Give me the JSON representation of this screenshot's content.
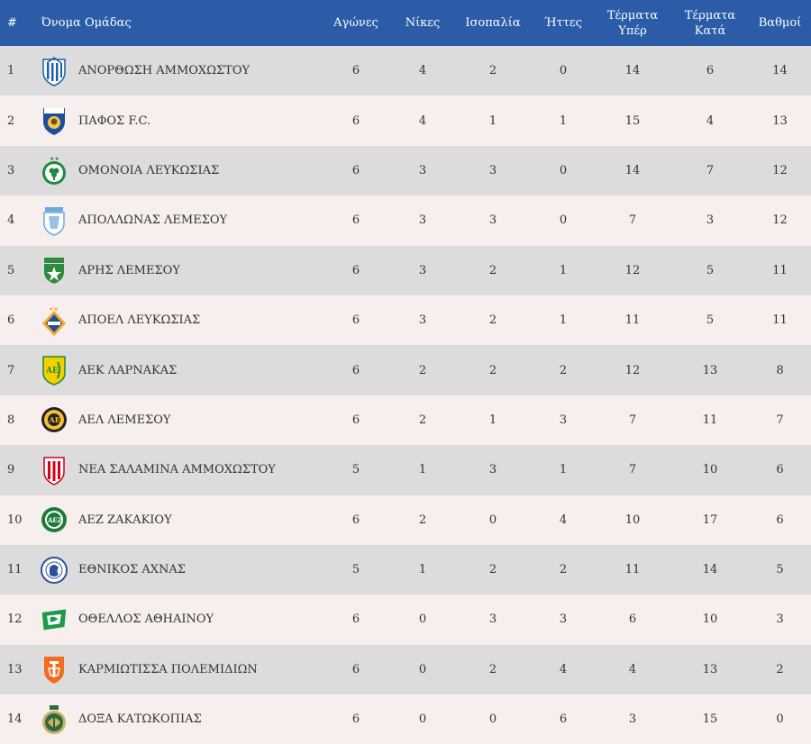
{
  "headers": {
    "rank": "#",
    "team": "Όνομα Ομάδας",
    "played": "Αγώνες",
    "wins": "Νίκες",
    "draws": "Ισοπαλία",
    "losses": "Ήττες",
    "goals_for_line1": "Τέρματα",
    "goals_for_line2": "Υπέρ",
    "goals_against_line1": "Τέρματα",
    "goals_against_line2": "Κατά",
    "points": "Βαθμοί"
  },
  "rows": [
    {
      "rank": "1",
      "team": "ΑΝΟΡΘΩΣΗ ΑΜΜΟΧΩΣΤΟΥ",
      "played": "6",
      "wins": "4",
      "draws": "2",
      "losses": "0",
      "gf": "14",
      "ga": "6",
      "pts": "14",
      "logo": "anorthosis-logo",
      "logo_colors": [
        "#1f5fa8",
        "#ffffff"
      ]
    },
    {
      "rank": "2",
      "team": "ΠΑΦΟΣ F.C.",
      "played": "6",
      "wins": "4",
      "draws": "1",
      "losses": "1",
      "gf": "15",
      "ga": "4",
      "pts": "13",
      "logo": "pafos-logo",
      "logo_colors": [
        "#1d4f9c",
        "#f2c94c"
      ]
    },
    {
      "rank": "3",
      "team": "ΟΜΟΝΟΙΑ ΛΕΥΚΩΣΙΑΣ",
      "played": "6",
      "wins": "3",
      "draws": "3",
      "losses": "0",
      "gf": "14",
      "ga": "7",
      "pts": "12",
      "logo": "omonoia-logo",
      "logo_colors": [
        "#1e8a3c",
        "#ffffff"
      ]
    },
    {
      "rank": "4",
      "team": "ΑΠΟΛΛΩΝΑΣ ΛΕΜΕΣΟΥ",
      "played": "6",
      "wins": "3",
      "draws": "3",
      "losses": "0",
      "gf": "7",
      "ga": "3",
      "pts": "12",
      "logo": "apollon-logo",
      "logo_colors": [
        "#6fa8dc",
        "#ffffff"
      ]
    },
    {
      "rank": "5",
      "team": "ΑΡΗΣ ΛΕΜΕΣΟΥ",
      "played": "6",
      "wins": "3",
      "draws": "2",
      "losses": "1",
      "gf": "12",
      "ga": "5",
      "pts": "11",
      "logo": "aris-logo",
      "logo_colors": [
        "#2e8b3e",
        "#ffffff"
      ]
    },
    {
      "rank": "6",
      "team": "ΑΠΟΕΛ ΛΕΥΚΩΣΙΑΣ",
      "played": "6",
      "wins": "3",
      "draws": "2",
      "losses": "1",
      "gf": "11",
      "ga": "5",
      "pts": "11",
      "logo": "apoel-logo",
      "logo_colors": [
        "#f5a623",
        "#1f4e9c"
      ]
    },
    {
      "rank": "7",
      "team": "ΑΕΚ ΛΑΡΝΑΚΑΣ",
      "played": "6",
      "wins": "2",
      "draws": "2",
      "losses": "2",
      "gf": "12",
      "ga": "13",
      "pts": "8",
      "logo": "aek-logo",
      "logo_colors": [
        "#f5d000",
        "#1e8a3c"
      ]
    },
    {
      "rank": "8",
      "team": "ΑΕΛ ΛΕΜΕΣΟΥ",
      "played": "6",
      "wins": "2",
      "draws": "1",
      "losses": "3",
      "gf": "7",
      "ga": "11",
      "pts": "7",
      "logo": "ael-logo",
      "logo_colors": [
        "#f2c230",
        "#222222"
      ]
    },
    {
      "rank": "9",
      "team": "ΝΕΑ ΣΑΛΑΜΙΝΑ ΑΜΜΟΧΩΣΤΟΥ",
      "played": "5",
      "wins": "1",
      "draws": "3",
      "losses": "1",
      "gf": "7",
      "ga": "10",
      "pts": "6",
      "logo": "nea-salamina-logo",
      "logo_colors": [
        "#d0021b",
        "#ffffff"
      ]
    },
    {
      "rank": "10",
      "team": "ΑΕΖ ΖΑΚΑΚΙΟΥ",
      "played": "6",
      "wins": "2",
      "draws": "0",
      "losses": "4",
      "gf": "10",
      "ga": "17",
      "pts": "6",
      "logo": "aez-logo",
      "logo_colors": [
        "#1e7a3a",
        "#ffffff"
      ]
    },
    {
      "rank": "11",
      "team": "ΕΘΝΙΚΟΣ ΑΧΝΑΣ",
      "played": "5",
      "wins": "1",
      "draws": "2",
      "losses": "2",
      "gf": "11",
      "ga": "14",
      "pts": "5",
      "logo": "ethnikos-logo",
      "logo_colors": [
        "#2c4f9e",
        "#ffffff"
      ]
    },
    {
      "rank": "12",
      "team": "ΟΘΕΛΛΟΣ ΑΘΗΑΙΝΟΥ",
      "played": "6",
      "wins": "0",
      "draws": "3",
      "losses": "3",
      "gf": "6",
      "ga": "10",
      "pts": "3",
      "logo": "othellos-logo",
      "logo_colors": [
        "#1e9a4a",
        "#ffffff"
      ]
    },
    {
      "rank": "13",
      "team": "ΚΑΡΜΙΩΤΙΣΣΑ ΠΟΛΕΜΙΔΙΩΝ",
      "played": "6",
      "wins": "0",
      "draws": "2",
      "losses": "4",
      "gf": "4",
      "ga": "13",
      "pts": "2",
      "logo": "karmiotissa-logo",
      "logo_colors": [
        "#f26b21",
        "#ffffff"
      ]
    },
    {
      "rank": "14",
      "team": "ΔΟΞΑ ΚΑΤΩΚΟΠΙΑΣ",
      "played": "6",
      "wins": "0",
      "draws": "0",
      "losses": "6",
      "gf": "3",
      "ga": "15",
      "pts": "0",
      "logo": "doxa-logo",
      "logo_colors": [
        "#2f6b3a",
        "#c8b26a"
      ]
    }
  ],
  "colors": {
    "header_bg": "#2c5ca8",
    "header_text": "#ffffff",
    "row_odd_bg": "#dcdcdc",
    "row_even_bg": "#f7eeee",
    "text": "#333333"
  }
}
